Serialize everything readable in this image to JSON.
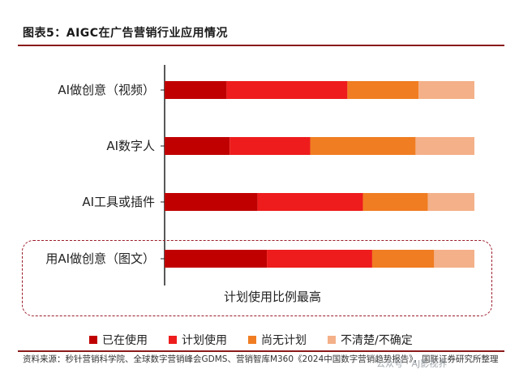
{
  "header": {
    "title": "图表5：AIGC在广告营销行业应用情况"
  },
  "chart_data": {
    "type": "bar",
    "orientation": "horizontal",
    "stacked": true,
    "categories": [
      "AI做创意（视频）",
      "AI数字人",
      "AI工具或插件",
      "用AI做创意（图文）"
    ],
    "series": [
      {
        "name": "已在使用",
        "color": "#c00000",
        "values": [
          20,
          21,
          30,
          33
        ]
      },
      {
        "name": "计划使用",
        "color": "#ee1c1c",
        "values": [
          39,
          26,
          34,
          34
        ]
      },
      {
        "name": "尚无计划",
        "color": "#f07d22",
        "values": [
          23,
          34,
          21,
          20
        ]
      },
      {
        "name": "不清楚/不确定",
        "color": "#f4b088",
        "values": [
          18,
          19,
          15,
          13
        ]
      }
    ],
    "xlim": [
      0,
      100
    ],
    "grid": false,
    "legend_position": "bottom",
    "annotation": "计划使用比例最高"
  },
  "footer": {
    "source": "资料来源：秒针营销科学院、全球数字营销峰会GDMS、营销智库M360《2024中国数字营销趋势报告》，国联证券研究所整理",
    "watermark": "公众号 · AJ影视界"
  }
}
